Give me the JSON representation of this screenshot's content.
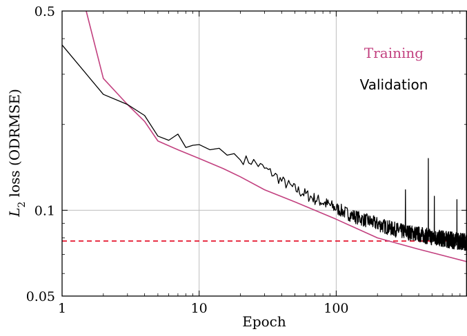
{
  "chart_data": {
    "type": "line",
    "x_scale": "log",
    "y_scale": "log",
    "xlim": [
      1,
      900
    ],
    "ylim": [
      0.05,
      0.5
    ],
    "xlabel": "Epoch",
    "ylabel": "L2 loss (ODRMSE)",
    "ylabel_parts": {
      "main": "L",
      "sub": "2",
      "rest": " loss (ODRMSE)"
    },
    "x_ticks": [
      {
        "value": 1,
        "label": "1"
      },
      {
        "value": 10,
        "label": "10"
      },
      {
        "value": 100,
        "label": "100"
      }
    ],
    "y_ticks": [
      {
        "value": 0.05,
        "label": "0.05"
      },
      {
        "value": 0.1,
        "label": "0.1"
      },
      {
        "value": 0.5,
        "label": "0.5"
      }
    ],
    "grid": true,
    "legend_position": "top-right",
    "legend": [
      {
        "label": "Training",
        "color": "#c2407f"
      },
      {
        "label": "Validation",
        "color": "#000000"
      }
    ],
    "reference_line": {
      "y": 0.078,
      "color": "#e3001b",
      "style": "dashed"
    },
    "series": [
      {
        "name": "Training",
        "color": "#c2407f",
        "x": [
          1.5,
          2,
          3,
          4,
          5,
          7,
          10,
          15,
          20,
          30,
          50,
          100,
          200,
          400,
          900
        ],
        "y": [
          0.5,
          0.29,
          0.235,
          0.205,
          0.175,
          0.163,
          0.152,
          0.14,
          0.131,
          0.118,
          0.107,
          0.093,
          0.08,
          0.073,
          0.066
        ]
      },
      {
        "name": "Validation",
        "color": "#000000",
        "x": [
          1,
          2,
          3,
          4,
          5,
          6,
          7,
          8,
          9,
          10,
          12,
          14,
          16,
          18,
          20,
          22,
          25,
          30,
          35,
          40,
          50,
          60,
          70,
          80,
          100,
          120,
          150,
          200,
          250,
          300,
          400,
          500,
          600,
          700,
          900
        ],
        "y": [
          0.38,
          0.255,
          0.235,
          0.215,
          0.182,
          0.176,
          0.185,
          0.166,
          0.169,
          0.17,
          0.163,
          0.165,
          0.156,
          0.158,
          0.15,
          0.148,
          0.146,
          0.138,
          0.132,
          0.125,
          0.117,
          0.112,
          0.108,
          0.105,
          0.1,
          0.096,
          0.092,
          0.088,
          0.085,
          0.083,
          0.081,
          0.079,
          0.078,
          0.077,
          0.076
        ]
      }
    ],
    "validation_noise_seed": 7,
    "validation_spikes": [
      {
        "x": 320,
        "y": 0.118
      },
      {
        "x": 470,
        "y": 0.152
      },
      {
        "x": 520,
        "y": 0.112
      },
      {
        "x": 760,
        "y": 0.109
      }
    ]
  }
}
